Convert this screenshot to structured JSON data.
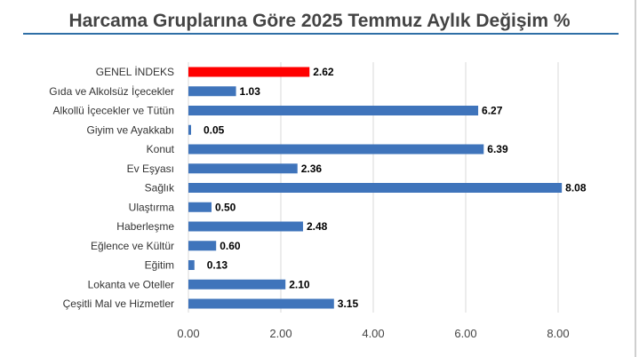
{
  "chart_data": {
    "type": "bar",
    "orientation": "horizontal",
    "title": "Harcama Gruplarına Göre 2025 Temmuz Aylık Değişim %",
    "xlabel": "",
    "ylabel": "",
    "xlim": [
      0,
      8
    ],
    "ticks": [
      "0.00",
      "2.00",
      "4.00",
      "6.00",
      "8.00"
    ],
    "tick_values": [
      0,
      2,
      4,
      6,
      8
    ],
    "grid": true,
    "legend": "none",
    "categories": [
      "GENEL İNDEKS",
      "Gıda ve Alkolsüz İçecekler",
      "Alkollü İçecekler ve Tütün",
      "Giyim ve Ayakkabı",
      "Konut",
      "Ev Eşyası",
      "Sağlık",
      "Ulaştırma",
      "Haberleşme",
      "Eğlence ve Kültür",
      "Eğitim",
      "Lokanta ve Oteller",
      "Çeşitli Mal ve Hizmetler"
    ],
    "values": [
      2.62,
      1.03,
      6.27,
      0.05,
      6.39,
      2.36,
      8.08,
      0.5,
      2.48,
      0.6,
      0.13,
      2.1,
      3.15
    ],
    "value_labels": [
      "2.62",
      "1.03",
      "6.27",
      "0.05",
      "6.39",
      "2.36",
      "8.08",
      "0.50",
      "2.48",
      "0.60",
      "0.13",
      "2.10",
      "3.15"
    ],
    "highlight_index": 0,
    "colors": {
      "bar": "#3f74bb",
      "highlight_bar": "#ff0000",
      "highlight_label": "#ff0000",
      "grid": "#d9d9d9",
      "title_rule": "#2f6fa6"
    }
  }
}
